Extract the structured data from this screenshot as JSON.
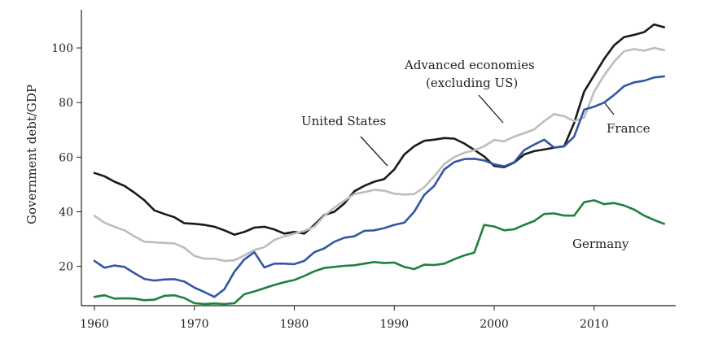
{
  "chart_data": {
    "type": "line",
    "title": "",
    "xlabel": "",
    "ylabel": "Government debt/GDP",
    "xlim": [
      1960,
      2018
    ],
    "ylim": [
      5,
      114
    ],
    "xticks": [
      1960,
      1970,
      1980,
      1990,
      2000,
      2010
    ],
    "yticks": [
      20,
      40,
      60,
      80,
      100
    ],
    "grid": false,
    "x": [
      1960,
      1961,
      1962,
      1963,
      1964,
      1965,
      1966,
      1967,
      1968,
      1969,
      1970,
      1971,
      1972,
      1973,
      1974,
      1975,
      1976,
      1977,
      1978,
      1979,
      1980,
      1981,
      1982,
      1983,
      1984,
      1985,
      1986,
      1987,
      1988,
      1989,
      1990,
      1991,
      1992,
      1993,
      1994,
      1995,
      1996,
      1997,
      1998,
      1999,
      2000,
      2001,
      2002,
      2003,
      2004,
      2005,
      2006,
      2007,
      2008,
      2009,
      2010,
      2011,
      2012,
      2013,
      2014,
      2015,
      2016,
      2017
    ],
    "series": [
      {
        "name": "United States",
        "color": "#1a1a1a",
        "values": [
          54.2,
          53.0,
          51.0,
          49.5,
          47.0,
          44.2,
          40.5,
          39.2,
          38.0,
          35.8,
          35.6,
          35.2,
          34.5,
          33.2,
          31.6,
          32.6,
          34.2,
          34.5,
          33.5,
          32.0,
          32.6,
          32.0,
          35.2,
          38.8,
          40.0,
          43.0,
          47.5,
          49.5,
          51.0,
          52.0,
          55.5,
          61.0,
          64.0,
          66.0,
          66.4,
          67.0,
          66.8,
          65.0,
          62.7,
          60.2,
          56.8,
          56.3,
          58.0,
          61.0,
          62.2,
          62.8,
          63.5,
          64.0,
          72.5,
          84.0,
          90.0,
          96.0,
          101.0,
          104.0,
          104.8,
          105.8,
          108.6,
          107.6
        ]
      },
      {
        "name": "Advanced economies (excluding US)",
        "color": "#bdbdbd",
        "values": [
          38.5,
          36.0,
          34.5,
          33.2,
          31.0,
          29.0,
          28.8,
          28.6,
          28.4,
          26.8,
          23.8,
          22.8,
          22.8,
          22.0,
          22.2,
          24.0,
          26.0,
          27.0,
          29.7,
          31.0,
          32.0,
          33.0,
          34.5,
          38.5,
          41.5,
          44.0,
          46.5,
          47.2,
          48.0,
          47.7,
          46.6,
          46.3,
          46.5,
          49.0,
          53.0,
          57.5,
          60.0,
          61.6,
          62.5,
          64.0,
          66.3,
          65.8,
          67.5,
          68.8,
          70.2,
          73.2,
          75.8,
          75.0,
          73.2,
          74.5,
          84.0,
          90.0,
          95.0,
          98.8,
          99.6,
          99.0,
          100.0,
          99.2
        ]
      },
      {
        "name": "France",
        "color": "#3555a6",
        "values": [
          22.0,
          19.5,
          20.3,
          19.8,
          17.5,
          15.4,
          14.8,
          15.2,
          15.3,
          14.4,
          12.2,
          10.6,
          8.8,
          11.6,
          18.0,
          22.5,
          25.2,
          19.6,
          21.0,
          21.0,
          20.8,
          22.0,
          25.2,
          26.6,
          29.0,
          30.5,
          31.0,
          33.0,
          33.2,
          34.0,
          35.2,
          36.0,
          40.0,
          46.2,
          49.5,
          55.5,
          58.2,
          59.3,
          59.4,
          58.8,
          57.4,
          56.6,
          58.2,
          62.6,
          64.6,
          66.4,
          63.5,
          64.0,
          67.5,
          77.4,
          78.5,
          80.0,
          82.8,
          86.0,
          87.4,
          88.0,
          89.2,
          89.6
        ]
      },
      {
        "name": "Germany",
        "color": "#1f8040",
        "values": [
          8.8,
          9.4,
          8.2,
          8.3,
          8.2,
          7.6,
          7.8,
          9.2,
          9.4,
          8.4,
          6.5,
          6.2,
          6.4,
          6.2,
          6.5,
          9.8,
          10.8,
          12.0,
          13.2,
          14.2,
          15.0,
          16.5,
          18.2,
          19.4,
          19.8,
          20.2,
          20.4,
          21.0,
          21.6,
          21.2,
          21.4,
          19.8,
          19.0,
          20.6,
          20.5,
          21.0,
          22.6,
          24.0,
          25.0,
          35.2,
          34.6,
          33.2,
          33.6,
          35.2,
          36.6,
          39.2,
          39.4,
          38.6,
          38.6,
          43.5,
          44.2,
          42.8,
          43.2,
          42.3,
          40.8,
          38.6,
          37.0,
          35.6
        ]
      }
    ],
    "annotations": {
      "us": "United States",
      "adv_line1": "Advanced economies",
      "adv_line2": "(excluding US)",
      "france": "France",
      "germany": "Germany"
    }
  }
}
